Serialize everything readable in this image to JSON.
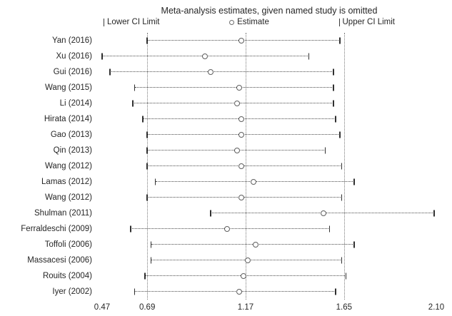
{
  "chart_data": {
    "type": "scatter",
    "subtype": "leave-one-out-forest-plot",
    "title": "Meta-analysis estimates, given named study is omitted",
    "xlabel": "",
    "ylabel": "",
    "xlim": [
      0.47,
      2.1
    ],
    "x_tick_labels": [
      "0.47",
      "0.69",
      "1.17",
      "1.65",
      "2.10"
    ],
    "x_ticks": [
      0.47,
      0.69,
      1.17,
      1.65,
      2.1
    ],
    "reference_lines": [
      0.69,
      1.17,
      1.65
    ],
    "grid": false,
    "legend_position": "top",
    "legend": {
      "lower": "Lower CI Limit",
      "estimate": "Estimate",
      "upper": "Upper CI Limit"
    },
    "studies": [
      {
        "label": "Yan (2016)",
        "lower": 0.69,
        "estimate": 1.15,
        "upper": 1.63
      },
      {
        "label": "Xu (2016)",
        "lower": 0.47,
        "estimate": 0.97,
        "upper": 1.48
      },
      {
        "label": "Gui (2016)",
        "lower": 0.51,
        "estimate": 1.0,
        "upper": 1.6
      },
      {
        "label": "Wang (2015)",
        "lower": 0.63,
        "estimate": 1.14,
        "upper": 1.6
      },
      {
        "label": "Li (2014)",
        "lower": 0.62,
        "estimate": 1.13,
        "upper": 1.6
      },
      {
        "label": "Hirata (2014)",
        "lower": 0.67,
        "estimate": 1.15,
        "upper": 1.61
      },
      {
        "label": "Gao (2013)",
        "lower": 0.69,
        "estimate": 1.15,
        "upper": 1.63
      },
      {
        "label": "Qin (2013)",
        "lower": 0.69,
        "estimate": 1.13,
        "upper": 1.56
      },
      {
        "label": "Wang (2012)",
        "lower": 0.69,
        "estimate": 1.15,
        "upper": 1.64
      },
      {
        "label": "Lamas  (2012)",
        "lower": 0.73,
        "estimate": 1.21,
        "upper": 1.7
      },
      {
        "label": "Wang (2012)",
        "lower": 0.69,
        "estimate": 1.15,
        "upper": 1.64
      },
      {
        "label": "Shulman (2011)",
        "lower": 1.0,
        "estimate": 1.55,
        "upper": 2.09
      },
      {
        "label": "Ferraldeschi (2009)",
        "lower": 0.61,
        "estimate": 1.08,
        "upper": 1.58
      },
      {
        "label": "Toffoli (2006)",
        "lower": 0.71,
        "estimate": 1.22,
        "upper": 1.7
      },
      {
        "label": "Massacesi (2006)",
        "lower": 0.71,
        "estimate": 1.18,
        "upper": 1.64
      },
      {
        "label": "Rouits (2004)",
        "lower": 0.68,
        "estimate": 1.16,
        "upper": 1.66
      },
      {
        "label": "Iyer (2002)",
        "lower": 0.63,
        "estimate": 1.14,
        "upper": 1.61
      }
    ]
  },
  "colors": {
    "background": "#ffffff",
    "text": "#262626",
    "line": "#4a4a4a",
    "reference_line": "#7a7a7a",
    "marker_border": "#5f5f5f",
    "marker_fill": "#ffffff"
  }
}
